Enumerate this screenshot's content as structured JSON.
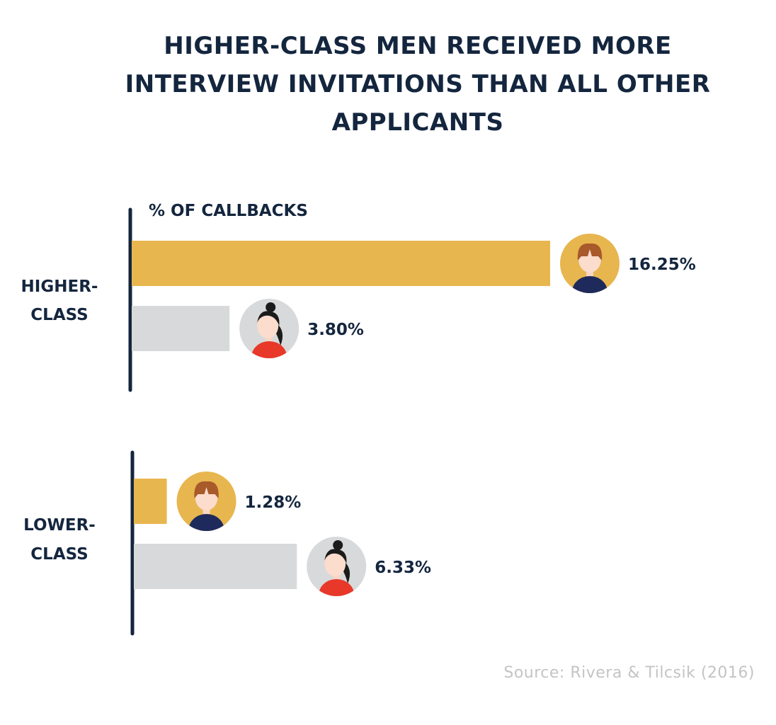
{
  "title_lines": [
    "HIGHER-CLASS MEN RECEIVED MORE",
    "INTERVIEW INVITATIONS THAN ALL OTHER",
    "APPLICANTS"
  ],
  "source": "Source: Rivera & Tilcsik (2016)",
  "colors": {
    "men": "#e8b64f",
    "women": "#d8d9da",
    "axis": "#14263e",
    "text": "#14263e"
  },
  "chart_data": {
    "type": "bar",
    "orientation": "horizontal",
    "title": "HIGHER-CLASS MEN RECEIVED MORE INTERVIEW INVITATIONS THAN ALL OTHER APPLICANTS",
    "xlabel": "% OF CALLBACKS",
    "categories": [
      [
        "HIGHER-",
        "CLASS"
      ],
      [
        "LOWER-",
        "CLASS"
      ]
    ],
    "series": [
      {
        "icon": "man-avatar-icon",
        "values": [
          16.25,
          1.28
        ],
        "labels": [
          "16.25%",
          "1.28%"
        ]
      },
      {
        "icon": "woman-avatar-icon",
        "values": [
          3.8,
          6.33
        ],
        "labels": [
          "3.80%",
          "6.33%"
        ]
      }
    ],
    "xlim": [
      0,
      16.25
    ],
    "grid": false,
    "legend": "none"
  }
}
